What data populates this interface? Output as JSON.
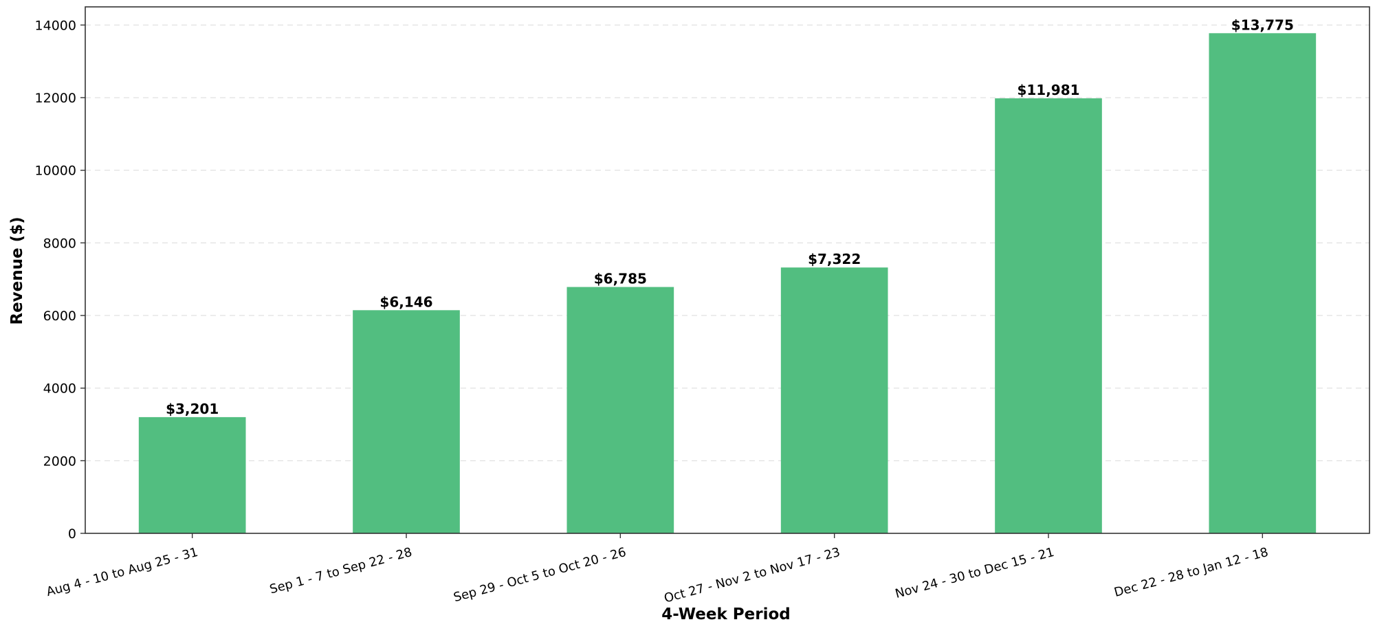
{
  "chart_data": {
    "type": "bar",
    "title": "",
    "xlabel": "4-Week Period",
    "ylabel": "Revenue ($)",
    "ylim": [
      0,
      14500
    ],
    "yticks": [
      0,
      2000,
      4000,
      6000,
      8000,
      10000,
      12000,
      14000
    ],
    "grid": "horizontal-dashed",
    "bar_color": "#52be80",
    "categories": [
      "Aug 4 - 10 to Aug 25 - 31",
      "Sep 1 - 7 to Sep 22 - 28",
      "Sep 29 - Oct 5 to Oct 20 - 26",
      "Oct 27 - Nov 2 to Nov 17 - 23",
      "Nov 24 - 30 to Dec 15 - 21",
      "Dec 22 - 28 to Jan 12 - 18"
    ],
    "values": [
      3201,
      6146,
      6785,
      7322,
      11981,
      13775
    ],
    "data_labels": [
      "$3,201",
      "$6,146",
      "$6,785",
      "$7,322",
      "$11,981",
      "$13,775"
    ]
  }
}
